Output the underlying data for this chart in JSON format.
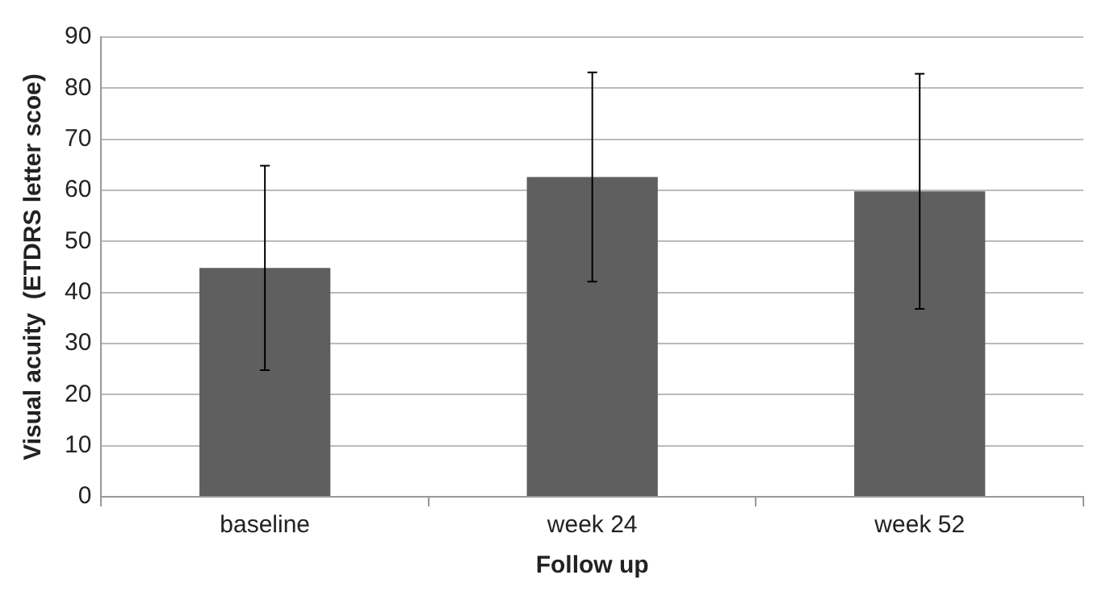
{
  "chart_data": {
    "type": "bar",
    "xlabel": "Follow up",
    "ylabel": "Visual acuity  (ETDRS letter scoe)",
    "categories": [
      "baseline",
      "week 24",
      "week 52"
    ],
    "values": [
      44.8,
      62.6,
      59.8
    ],
    "errors": [
      20,
      20.5,
      23
    ],
    "color": "#5f5f5f",
    "ylim": [
      0,
      90
    ],
    "yticks": [
      0,
      10,
      20,
      30,
      40,
      50,
      60,
      70,
      80,
      90
    ],
    "grid": "y"
  }
}
